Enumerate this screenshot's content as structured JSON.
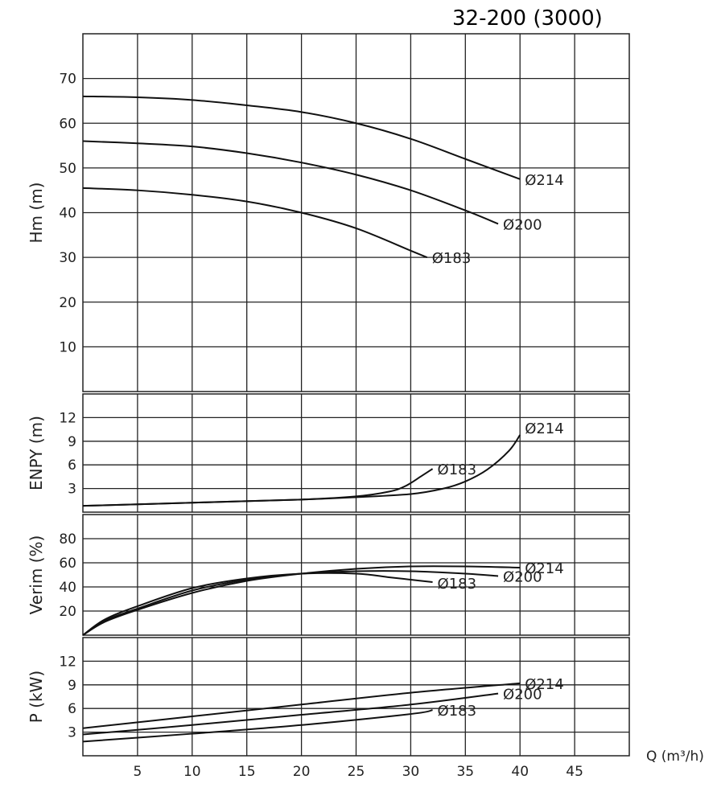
{
  "chart_data": {
    "type": "line",
    "title": "32-200 (3000)",
    "xlabel": "Q (m³/h)",
    "xlim": [
      0,
      50
    ],
    "x_ticks": [
      5,
      10,
      15,
      20,
      25,
      30,
      35,
      40,
      45
    ],
    "grid": true,
    "panels": [
      {
        "id": "hm",
        "ylabel": "Hm (m)",
        "ylim": [
          0,
          80
        ],
        "y_ticks": [
          10,
          20,
          30,
          40,
          50,
          60,
          70
        ],
        "series": [
          {
            "name": "Ø214",
            "x": [
              0,
              5,
              10,
              15,
              20,
              25,
              30,
              35,
              40
            ],
            "y": [
              66,
              65.8,
              65.2,
              64,
              62.5,
              60,
              56.5,
              52,
              47.5
            ]
          },
          {
            "name": "Ø200",
            "x": [
              0,
              5,
              10,
              15,
              20,
              25,
              30,
              35,
              38
            ],
            "y": [
              56,
              55.5,
              54.8,
              53.3,
              51.2,
              48.5,
              45,
              40.5,
              37.5
            ]
          },
          {
            "name": "Ø183",
            "x": [
              0,
              5,
              10,
              15,
              20,
              25,
              30,
              31.5
            ],
            "y": [
              45.5,
              45,
              44,
              42.5,
              40,
              36.5,
              31.5,
              30
            ]
          }
        ]
      },
      {
        "id": "npsh",
        "ylabel": "ENPY (m)",
        "ylim": [
          0,
          15
        ],
        "y_ticks": [
          3,
          6,
          9,
          12
        ],
        "series": [
          {
            "name": "Ø214",
            "x": [
              0,
              10,
              20,
              25,
              30,
              33,
              35,
              37,
              39,
              40
            ],
            "y": [
              0.8,
              1.2,
              1.6,
              1.9,
              2.3,
              3.0,
              3.9,
              5.4,
              7.8,
              9.8
            ]
          },
          {
            "name": "Ø183",
            "x": [
              0,
              10,
              20,
              25,
              28,
              29.5,
              31,
              32
            ],
            "y": [
              0.8,
              1.2,
              1.6,
              2.0,
              2.6,
              3.3,
              4.6,
              5.5
            ]
          }
        ]
      },
      {
        "id": "eff",
        "ylabel": "Verim (%)",
        "ylim": [
          0,
          100
        ],
        "y_ticks": [
          20,
          40,
          60,
          80
        ],
        "series": [
          {
            "name": "Ø214",
            "x": [
              0,
              2,
              5,
              10,
              15,
              20,
              25,
              30,
              35,
              40
            ],
            "y": [
              0,
              11,
              21,
              35,
              45,
              51,
              55,
              57,
              57,
              56
            ]
          },
          {
            "name": "Ø200",
            "x": [
              0,
              2,
              5,
              10,
              15,
              20,
              25,
              30,
              35,
              38
            ],
            "y": [
              0,
              12,
              22,
              37,
              46,
              51,
              53,
              53,
              51,
              49
            ]
          },
          {
            "name": "Ø183",
            "x": [
              0,
              2,
              5,
              10,
              15,
              20,
              25,
              28,
              30,
              32
            ],
            "y": [
              0,
              13,
              24,
              39,
              47,
              51,
              51,
              48,
              46,
              44
            ]
          }
        ]
      },
      {
        "id": "power",
        "ylabel": "P (kW)",
        "ylim": [
          0,
          15
        ],
        "y_ticks": [
          3,
          6,
          9,
          12
        ],
        "series": [
          {
            "name": "Ø214",
            "x": [
              0,
              10,
              20,
              30,
              40
            ],
            "y": [
              3.5,
              5.0,
              6.5,
              8.0,
              9.2
            ]
          },
          {
            "name": "Ø200",
            "x": [
              0,
              10,
              20,
              30,
              38
            ],
            "y": [
              2.7,
              3.9,
              5.2,
              6.5,
              7.9
            ]
          },
          {
            "name": "Ø183",
            "x": [
              0,
              10,
              20,
              30,
              32
            ],
            "y": [
              1.8,
              2.8,
              3.9,
              5.3,
              5.8
            ]
          }
        ]
      }
    ]
  }
}
